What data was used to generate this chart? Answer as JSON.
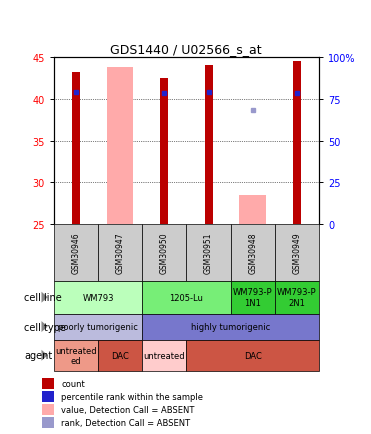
{
  "title": "GDS1440 / U02566_s_at",
  "samples": [
    "GSM30946",
    "GSM30947",
    "GSM30950",
    "GSM30951",
    "GSM30948",
    "GSM30949"
  ],
  "count_values": [
    43.2,
    null,
    42.5,
    44.0,
    null,
    44.5
  ],
  "rank_values": [
    40.8,
    null,
    40.7,
    40.8,
    null,
    40.7
  ],
  "absent_value_bars": [
    null,
    43.8,
    null,
    null,
    28.5,
    null
  ],
  "absent_rank_dots": [
    null,
    null,
    null,
    null,
    38.7,
    null
  ],
  "absent_value_bottom": [
    null,
    25,
    null,
    null,
    25,
    null
  ],
  "ylim": [
    25,
    45
  ],
  "yticks_left": [
    25,
    30,
    35,
    40,
    45
  ],
  "yticks_right_positions": [
    25,
    30,
    35,
    40,
    45
  ],
  "right_tick_labels": [
    "0",
    "25",
    "50",
    "75",
    "100%"
  ],
  "bar_color_red": "#bb0000",
  "bar_color_absent_value": "#ffaaaa",
  "dot_color_blue": "#2222cc",
  "dot_color_absent_rank": "#9999cc",
  "cell_line_data": [
    {
      "label": "WM793",
      "cols": [
        0,
        1
      ],
      "color": "#bbffbb"
    },
    {
      "label": "1205-Lu",
      "cols": [
        2,
        3
      ],
      "color": "#77ee77"
    },
    {
      "label": "WM793-P\n1N1",
      "cols": [
        4
      ],
      "color": "#33cc33"
    },
    {
      "label": "WM793-P\n2N1",
      "cols": [
        5
      ],
      "color": "#33cc33"
    }
  ],
  "cell_type_data": [
    {
      "label": "poorly tumorigenic",
      "cols": [
        0,
        1
      ],
      "color": "#bbbbdd"
    },
    {
      "label": "highly tumorigenic",
      "cols": [
        2,
        3,
        4,
        5
      ],
      "color": "#7777cc"
    }
  ],
  "agent_data": [
    {
      "label": "untreated\ned",
      "cols": [
        0
      ],
      "color": "#ee9988"
    },
    {
      "label": "DAC",
      "cols": [
        1
      ],
      "color": "#cc5544"
    },
    {
      "label": "untreated",
      "cols": [
        2
      ],
      "color": "#ffcccc"
    },
    {
      "label": "DAC",
      "cols": [
        3,
        4,
        5
      ],
      "color": "#cc5544"
    }
  ],
  "legend_items": [
    {
      "color": "#bb0000",
      "label": "count"
    },
    {
      "color": "#2222cc",
      "label": "percentile rank within the sample"
    },
    {
      "color": "#ffaaaa",
      "label": "value, Detection Call = ABSENT"
    },
    {
      "color": "#9999cc",
      "label": "rank, Detection Call = ABSENT"
    }
  ],
  "title_fontsize": 9,
  "label_fontsize": 7,
  "tick_fontsize": 7,
  "sample_fontsize": 5.5,
  "row_fontsize": 6,
  "legend_fontsize": 6
}
